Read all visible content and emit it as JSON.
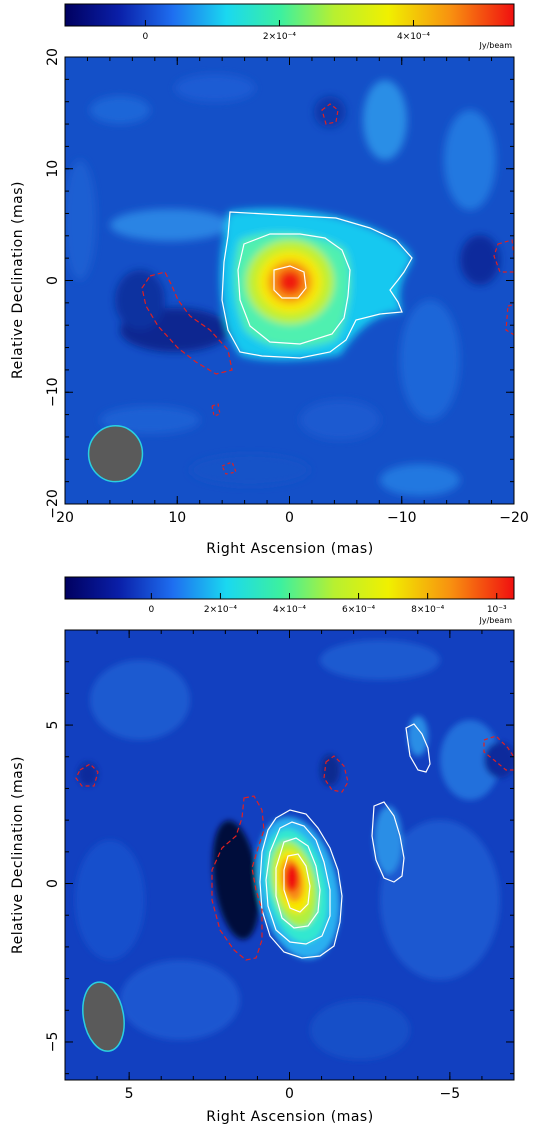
{
  "chart_data": [
    {
      "type": "heatmap",
      "colorbar": {
        "range": [
          -0.00012,
          0.00055
        ],
        "ticks": [
          {
            "value": 0,
            "label": "0"
          },
          {
            "value": 0.0002,
            "label": "2×10⁻⁴"
          },
          {
            "value": 0.0004,
            "label": "4×10⁻⁴"
          }
        ],
        "unit": "Jy/beam"
      },
      "xlabel": "Right Ascension  (mas)",
      "ylabel": "Relative Declination  (mas)",
      "xlim": [
        20,
        -20
      ],
      "ylim": [
        -20,
        20
      ],
      "xticks": [
        {
          "value": 20,
          "label": "20"
        },
        {
          "value": 10,
          "label": "10"
        },
        {
          "value": 0,
          "label": "0"
        },
        {
          "value": -10,
          "label": "−10"
        },
        {
          "value": -20,
          "label": "−20"
        }
      ],
      "yticks": [
        {
          "value": -20,
          "label": "−20"
        },
        {
          "value": -10,
          "label": "−10"
        },
        {
          "value": 0,
          "label": "0"
        },
        {
          "value": 10,
          "label": "10"
        },
        {
          "value": 20,
          "label": "20"
        }
      ],
      "peak": {
        "x": 0,
        "y": 0,
        "value": 0.00055
      },
      "beam": {
        "x": 15.5,
        "y": -15.5,
        "major": 5,
        "minor": 4.8,
        "pa": 0
      }
    },
    {
      "type": "heatmap",
      "colorbar": {
        "range": [
          -0.00025,
          0.00105
        ],
        "ticks": [
          {
            "value": 0,
            "label": "0"
          },
          {
            "value": 0.0002,
            "label": "2×10⁻⁴"
          },
          {
            "value": 0.0004,
            "label": "4×10⁻⁴"
          },
          {
            "value": 0.0006,
            "label": "6×10⁻⁴"
          },
          {
            "value": 0.0008,
            "label": "8×10⁻⁴"
          },
          {
            "value": 0.001,
            "label": "10⁻³"
          }
        ],
        "unit": "Jy/beam"
      },
      "xlabel": "Right Ascension  (mas)",
      "ylabel": "Relative Declination  (mas)",
      "xlim": [
        7,
        -7
      ],
      "ylim": [
        -6.2,
        8
      ],
      "xticks": [
        {
          "value": 5,
          "label": "5"
        },
        {
          "value": 0,
          "label": "0"
        },
        {
          "value": -5,
          "label": "−5"
        }
      ],
      "yticks": [
        {
          "value": -5,
          "label": "−5"
        },
        {
          "value": 0,
          "label": "0"
        },
        {
          "value": 5,
          "label": "5"
        }
      ],
      "peak": {
        "x": 0,
        "y": 0,
        "value": 0.00105
      },
      "beam": {
        "x": 5.8,
        "y": -4.2,
        "major": 2.2,
        "minor": 1.25,
        "pa": 10
      }
    }
  ]
}
